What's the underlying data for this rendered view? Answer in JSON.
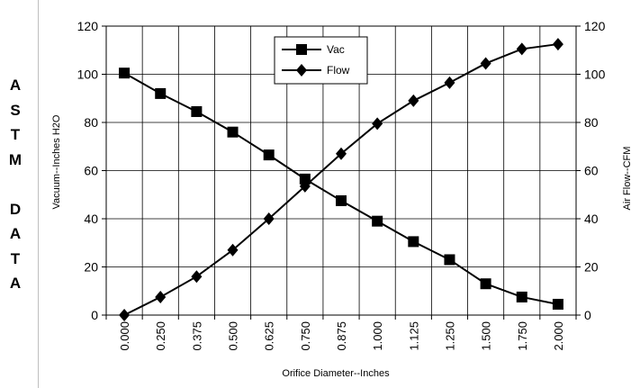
{
  "side_label": {
    "lines": [
      "A",
      "S",
      "T",
      "M",
      "",
      "D",
      "A",
      "T",
      "A"
    ]
  },
  "chart_data": {
    "type": "line",
    "title": "",
    "x": [
      "0.000",
      "0.250",
      "0.375",
      "0.500",
      "0.625",
      "0.750",
      "0.875",
      "1.000",
      "1.125",
      "1.250",
      "1.500",
      "1.750",
      "2.000"
    ],
    "xlabel": "Orifice Diameter--Inches",
    "ylabel": "Vacuum--Inches H2O",
    "ylabel_right": "Air Flow--CFM",
    "ylim": [
      0,
      120
    ],
    "ylim_right": [
      0,
      120
    ],
    "yticks": [
      0,
      20,
      40,
      60,
      80,
      100,
      120
    ],
    "grid": true,
    "legend_placement": "top-center",
    "series": [
      {
        "name": "Vac",
        "marker": "square",
        "axis": "left",
        "values": [
          100.5,
          92,
          84.5,
          76,
          66.5,
          56.5,
          47.5,
          39,
          30.5,
          23,
          13,
          7.5,
          4.5
        ]
      },
      {
        "name": "Flow",
        "marker": "diamond",
        "axis": "right",
        "values": [
          0,
          7.5,
          16,
          27,
          40,
          53.5,
          67,
          79.5,
          89,
          96.5,
          104.5,
          110.5,
          112.5
        ]
      }
    ],
    "colors": {
      "line": "#000000",
      "grid": "#000000",
      "background": "#ffffff"
    }
  }
}
